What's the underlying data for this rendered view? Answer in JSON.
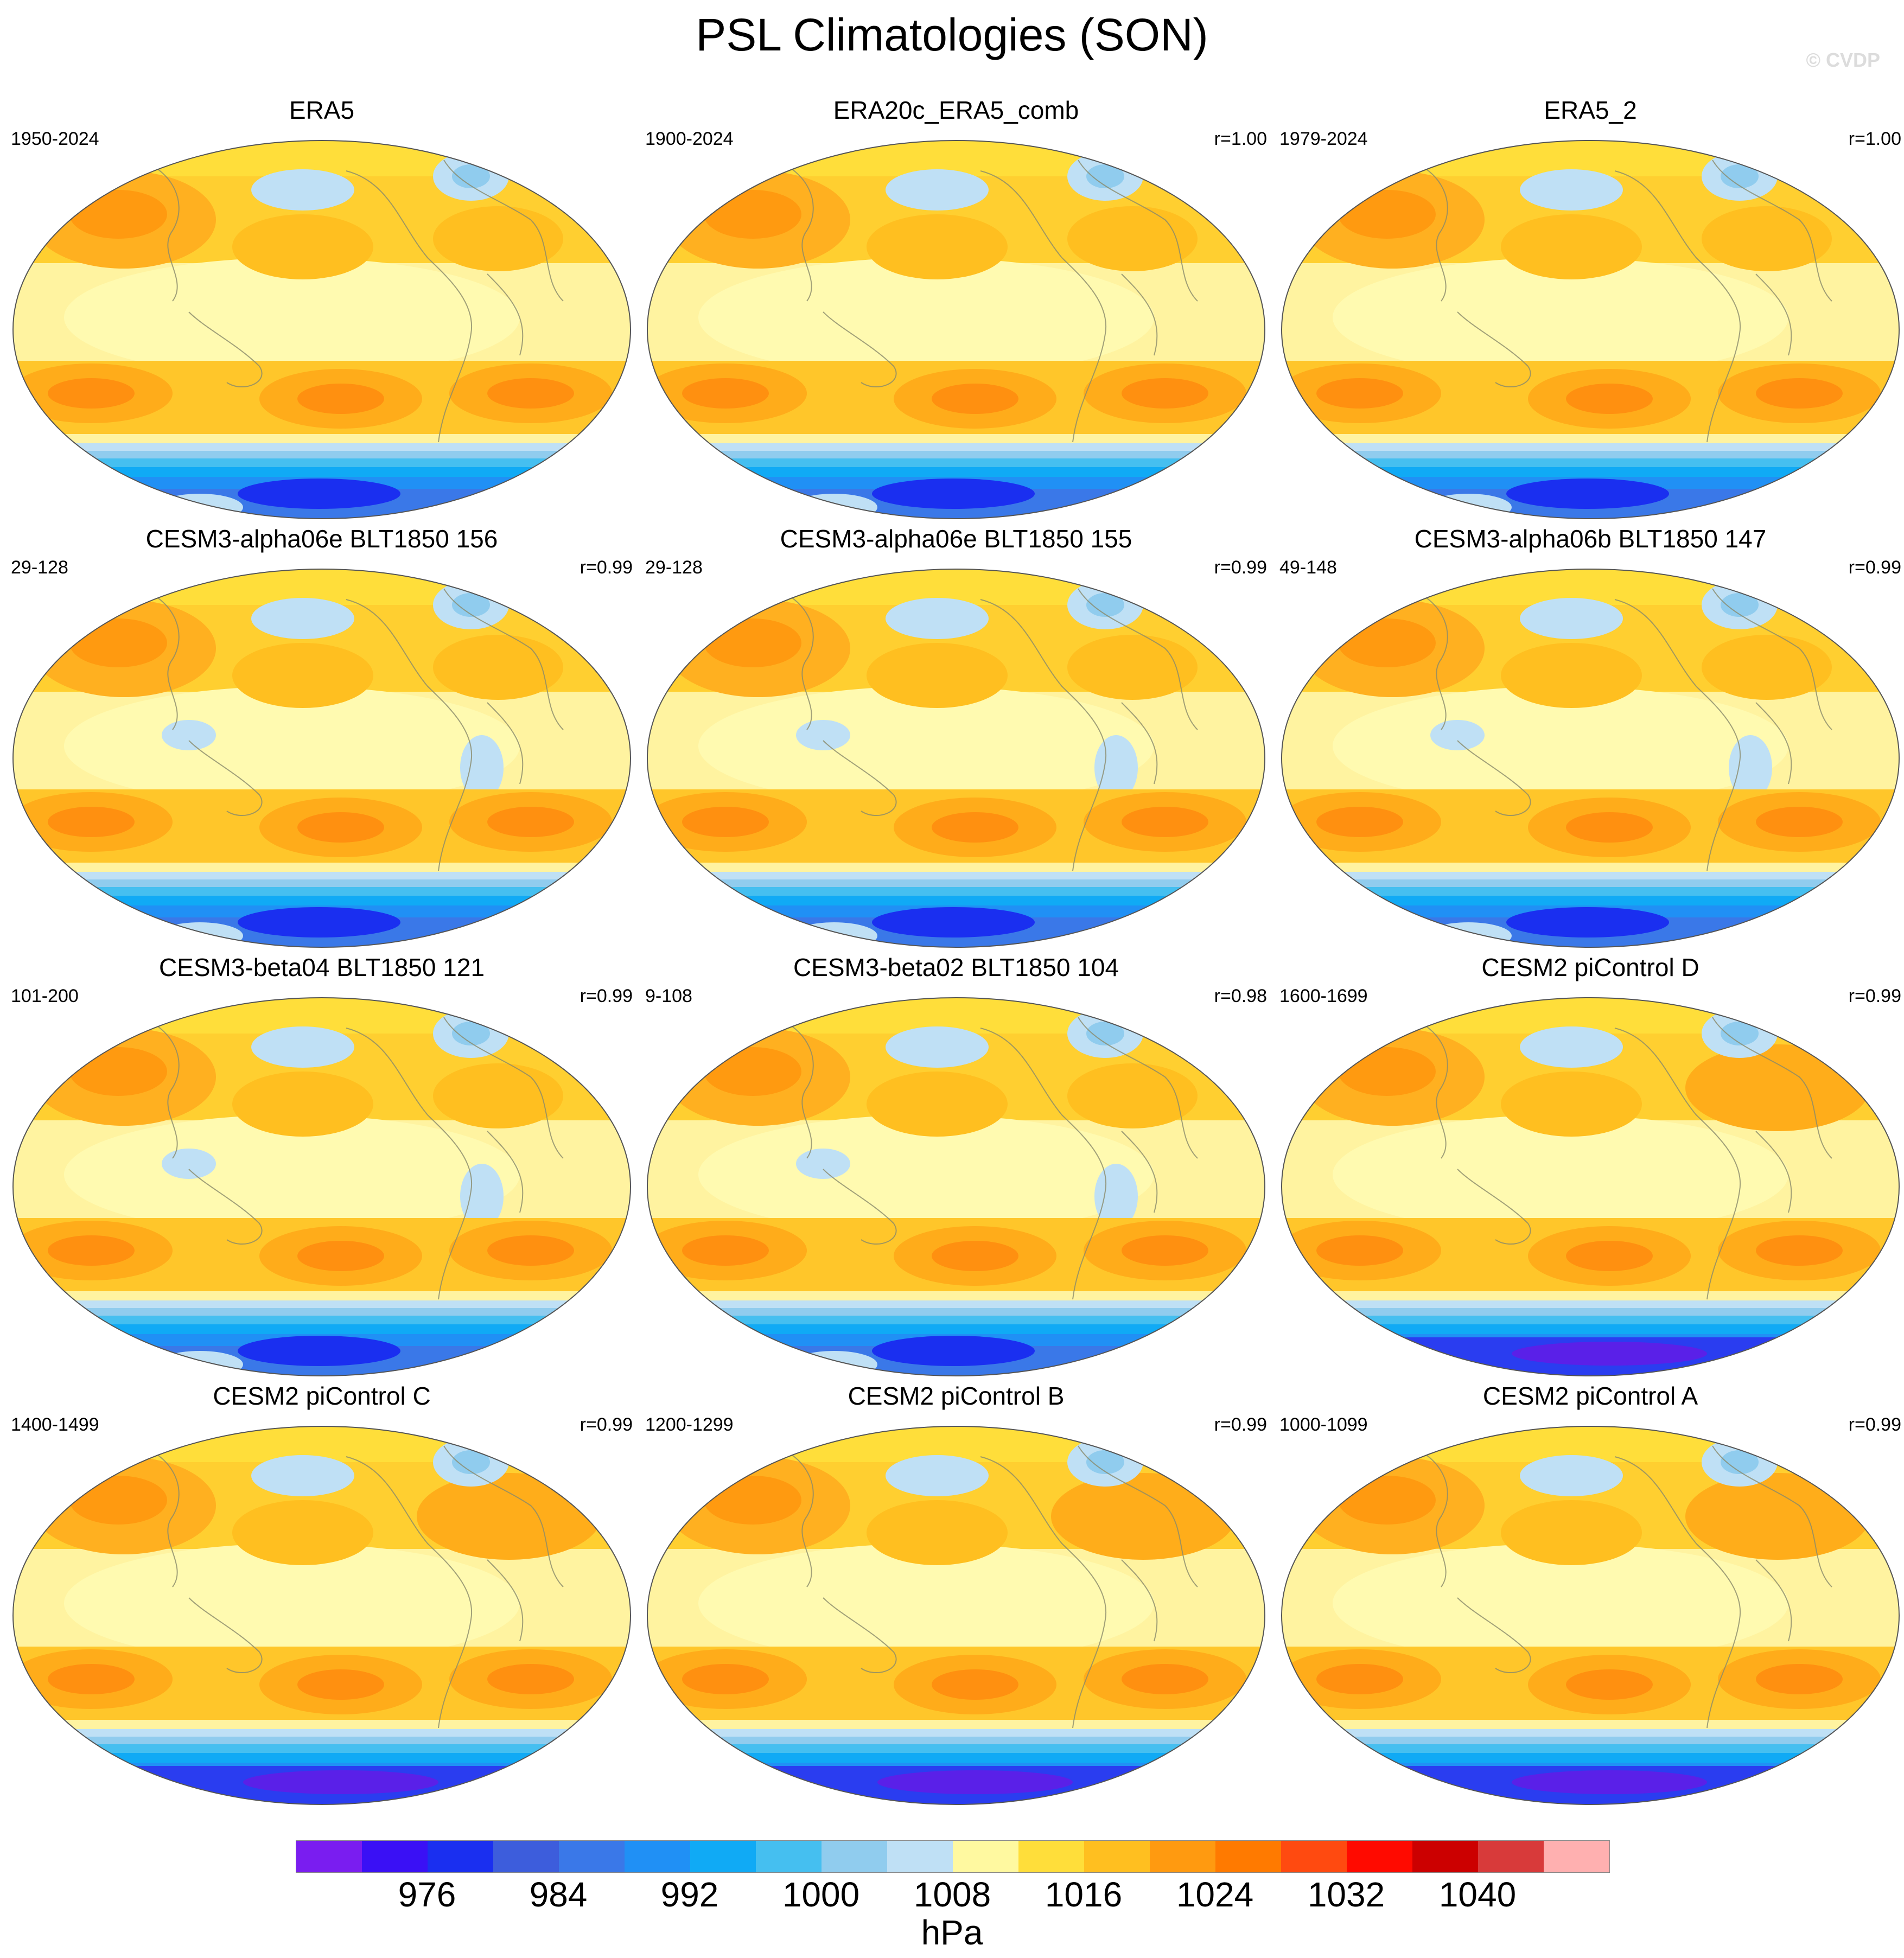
{
  "title": "PSL Climatologies (SON)",
  "watermark": "© CVDP",
  "panels": [
    {
      "title": "ERA5",
      "years": "1950-2024",
      "corr": "",
      "variant": "obs"
    },
    {
      "title": "ERA20c_ERA5_comb",
      "years": "1900-2024",
      "corr": "r=1.00",
      "variant": "obs"
    },
    {
      "title": "ERA5_2",
      "years": "1979-2024",
      "corr": "r=1.00",
      "variant": "obs"
    },
    {
      "title": "CESM3-alpha06e BLT1850 156",
      "years": "29-128",
      "corr": "r=0.99",
      "variant": "cesm3"
    },
    {
      "title": "CESM3-alpha06e BLT1850 155",
      "years": "29-128",
      "corr": "r=0.99",
      "variant": "cesm3"
    },
    {
      "title": "CESM3-alpha06b BLT1850 147",
      "years": "49-148",
      "corr": "r=0.99",
      "variant": "cesm3"
    },
    {
      "title": "CESM3-beta04 BLT1850 121",
      "years": "101-200",
      "corr": "r=0.99",
      "variant": "cesm3"
    },
    {
      "title": "CESM3-beta02 BLT1850 104",
      "years": "9-108",
      "corr": "r=0.98",
      "variant": "cesm3"
    },
    {
      "title": "CESM2 piControl D",
      "years": "1600-1699",
      "corr": "r=0.99",
      "variant": "cesm2"
    },
    {
      "title": "CESM2 piControl C",
      "years": "1400-1499",
      "corr": "r=0.99",
      "variant": "cesm2"
    },
    {
      "title": "CESM2 piControl B",
      "years": "1200-1299",
      "corr": "r=0.99",
      "variant": "cesm2"
    },
    {
      "title": "CESM2 piControl A",
      "years": "1000-1099",
      "corr": "r=0.99",
      "variant": "cesm2"
    }
  ],
  "colorbar": {
    "colors": [
      "#7a1df0",
      "#3a10f5",
      "#1a2ff0",
      "#3d5ddc",
      "#3a78e8",
      "#2090f5",
      "#10aaf5",
      "#45bff0",
      "#90ccee",
      "#bfe0f5",
      "#fff9a0",
      "#ffde3a",
      "#ffbf20",
      "#ff9a10",
      "#ff7a00",
      "#ff4a10",
      "#ff0a00",
      "#cc0000",
      "#d83a3a",
      "#ffb0b0"
    ],
    "labels": [
      "976",
      "984",
      "992",
      "1000",
      "1008",
      "1016",
      "1024",
      "1032",
      "1040"
    ],
    "units": "hPa"
  }
}
